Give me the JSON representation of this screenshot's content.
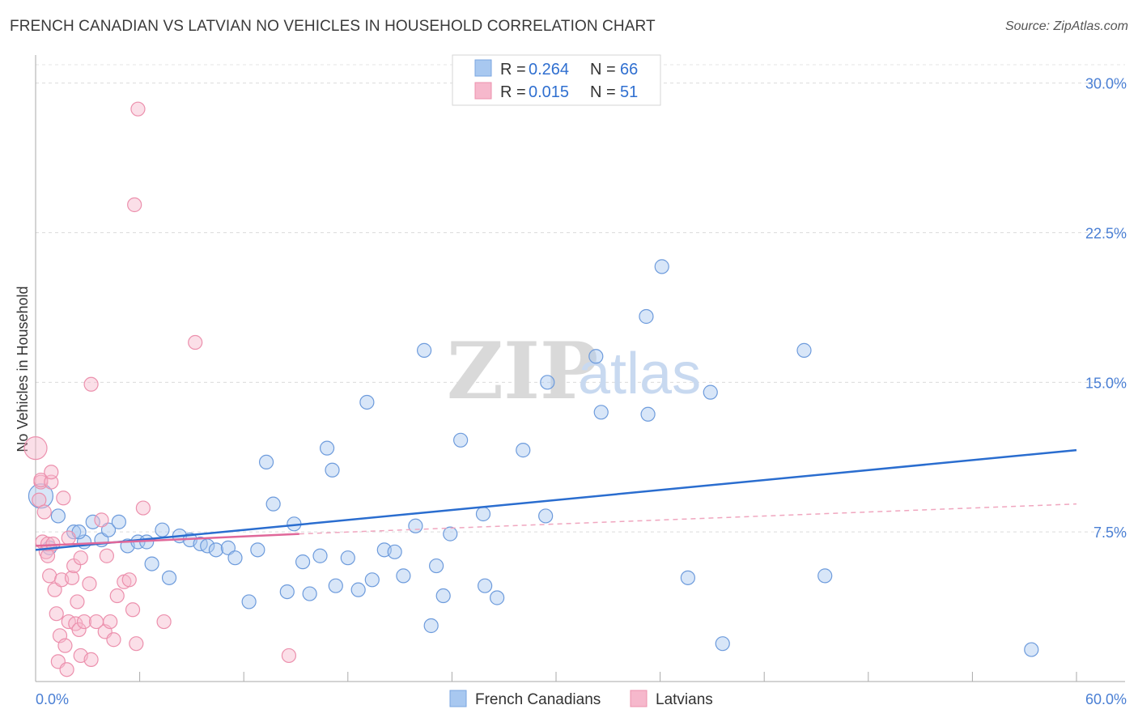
{
  "title": "FRENCH CANADIAN VS LATVIAN NO VEHICLES IN HOUSEHOLD CORRELATION CHART",
  "source": "Source: ZipAtlas.com",
  "watermark": {
    "zip": "ZIP",
    "atlas": "atlas"
  },
  "chart_data": {
    "type": "scatter",
    "title": "FRENCH CANADIAN VS LATVIAN NO VEHICLES IN HOUSEHOLD CORRELATION CHART",
    "xlabel": "",
    "ylabel": "No Vehicles in Household",
    "xlim": [
      0,
      60
    ],
    "ylim": [
      0,
      31
    ],
    "x_tick_labels": [
      "0.0%",
      "60.0%"
    ],
    "y_ticks": [
      7.5,
      15.0,
      22.5,
      30.0
    ],
    "y_tick_labels": [
      "7.5%",
      "15.0%",
      "22.5%",
      "30.0%"
    ],
    "grid": true,
    "legend": {
      "position": "top-center",
      "entries": [
        {
          "name": "French Canadians",
          "r_label": "R =",
          "r": "0.264",
          "n_label": "N =",
          "n": "66",
          "color": "#a8c8f0",
          "stroke": "#7aa6e0"
        },
        {
          "name": "Latvians",
          "r_label": "R =",
          "r": "0.015",
          "n_label": "N =",
          "n": "51",
          "color": "#f6b8cc",
          "stroke": "#ec90ad"
        }
      ]
    },
    "series": [
      {
        "name": "French Canadians",
        "color": "#a8c8f0",
        "stroke": "#6d9bdc",
        "trend": {
          "x": [
            0,
            60
          ],
          "y": [
            6.6,
            11.6
          ],
          "color": "#2a6dcf"
        },
        "points": [
          [
            0.3,
            9.3
          ],
          [
            0.8,
            6.7
          ],
          [
            1.3,
            8.3
          ],
          [
            2.2,
            7.5
          ],
          [
            2.8,
            7.0
          ],
          [
            2.5,
            7.5
          ],
          [
            3.3,
            8.0
          ],
          [
            3.8,
            7.1
          ],
          [
            4.2,
            7.6
          ],
          [
            4.8,
            8.0
          ],
          [
            5.3,
            6.8
          ],
          [
            5.9,
            7.0
          ],
          [
            6.4,
            7.0
          ],
          [
            6.7,
            5.9
          ],
          [
            7.3,
            7.6
          ],
          [
            7.7,
            5.2
          ],
          [
            8.3,
            7.3
          ],
          [
            8.9,
            7.1
          ],
          [
            9.5,
            6.9
          ],
          [
            9.9,
            6.8
          ],
          [
            10.4,
            6.6
          ],
          [
            11.1,
            6.7
          ],
          [
            11.5,
            6.2
          ],
          [
            12.3,
            4.0
          ],
          [
            12.8,
            6.6
          ],
          [
            13.3,
            11.0
          ],
          [
            13.7,
            8.9
          ],
          [
            14.5,
            4.5
          ],
          [
            14.9,
            7.9
          ],
          [
            15.4,
            6.0
          ],
          [
            15.8,
            4.4
          ],
          [
            16.4,
            6.3
          ],
          [
            16.8,
            11.7
          ],
          [
            17.1,
            10.6
          ],
          [
            17.3,
            4.8
          ],
          [
            18.0,
            6.2
          ],
          [
            18.6,
            4.6
          ],
          [
            19.1,
            14.0
          ],
          [
            19.4,
            5.1
          ],
          [
            20.1,
            6.6
          ],
          [
            20.7,
            6.5
          ],
          [
            21.2,
            5.3
          ],
          [
            21.9,
            7.8
          ],
          [
            22.4,
            16.6
          ],
          [
            22.8,
            2.8
          ],
          [
            23.1,
            5.8
          ],
          [
            23.5,
            4.3
          ],
          [
            23.9,
            7.4
          ],
          [
            24.5,
            12.1
          ],
          [
            25.8,
            8.4
          ],
          [
            25.9,
            4.8
          ],
          [
            26.6,
            4.2
          ],
          [
            28.1,
            11.6
          ],
          [
            29.4,
            8.3
          ],
          [
            29.5,
            15.0
          ],
          [
            32.3,
            16.3
          ],
          [
            32.6,
            13.5
          ],
          [
            35.2,
            18.3
          ],
          [
            35.3,
            13.4
          ],
          [
            36.1,
            20.8
          ],
          [
            37.6,
            5.2
          ],
          [
            38.9,
            14.5
          ],
          [
            39.6,
            1.9
          ],
          [
            44.3,
            16.6
          ],
          [
            45.5,
            5.3
          ],
          [
            57.4,
            1.6
          ]
        ]
      },
      {
        "name": "Latvians",
        "color": "#f6b8cc",
        "stroke": "#ec90ad",
        "trend": {
          "x": [
            0,
            15.2
          ],
          "y": [
            6.8,
            7.4
          ],
          "color": "#e0689a"
        },
        "trend_extension": {
          "x": [
            15.2,
            60
          ],
          "y": [
            7.4,
            8.9
          ],
          "color": "#f0a6bf",
          "dashed": true
        },
        "points": [
          [
            0.0,
            11.7
          ],
          [
            0.2,
            9.1
          ],
          [
            0.3,
            10.0
          ],
          [
            0.3,
            10.1
          ],
          [
            0.4,
            7.0
          ],
          [
            0.5,
            8.5
          ],
          [
            0.6,
            6.5
          ],
          [
            0.7,
            6.3
          ],
          [
            0.7,
            6.9
          ],
          [
            0.8,
            5.3
          ],
          [
            0.9,
            10.0
          ],
          [
            0.9,
            10.5
          ],
          [
            1.0,
            6.9
          ],
          [
            1.1,
            4.6
          ],
          [
            1.2,
            3.4
          ],
          [
            1.3,
            1.0
          ],
          [
            1.4,
            2.3
          ],
          [
            1.5,
            5.1
          ],
          [
            1.6,
            9.2
          ],
          [
            1.7,
            1.8
          ],
          [
            1.8,
            0.6
          ],
          [
            1.9,
            7.2
          ],
          [
            1.9,
            3.0
          ],
          [
            2.1,
            5.2
          ],
          [
            2.2,
            5.8
          ],
          [
            2.3,
            2.9
          ],
          [
            2.4,
            4.0
          ],
          [
            2.5,
            2.6
          ],
          [
            2.6,
            1.3
          ],
          [
            2.6,
            6.2
          ],
          [
            2.8,
            3.0
          ],
          [
            3.1,
            4.9
          ],
          [
            3.2,
            14.9
          ],
          [
            3.2,
            1.1
          ],
          [
            3.5,
            3.0
          ],
          [
            3.8,
            8.1
          ],
          [
            4.0,
            2.5
          ],
          [
            4.1,
            6.3
          ],
          [
            4.3,
            3.0
          ],
          [
            4.5,
            2.1
          ],
          [
            4.7,
            4.3
          ],
          [
            5.1,
            5.0
          ],
          [
            5.4,
            5.1
          ],
          [
            5.6,
            3.6
          ],
          [
            5.7,
            23.9
          ],
          [
            5.8,
            1.9
          ],
          [
            5.9,
            28.7
          ],
          [
            6.2,
            8.7
          ],
          [
            7.4,
            3.0
          ],
          [
            9.2,
            17.0
          ],
          [
            14.6,
            1.3
          ]
        ]
      }
    ]
  },
  "bottom_legend": [
    {
      "label": "French Canadians",
      "color": "#a8c8f0",
      "stroke": "#7aa6e0"
    },
    {
      "label": "Latvians",
      "color": "#f6b8cc",
      "stroke": "#ec90ad"
    }
  ]
}
